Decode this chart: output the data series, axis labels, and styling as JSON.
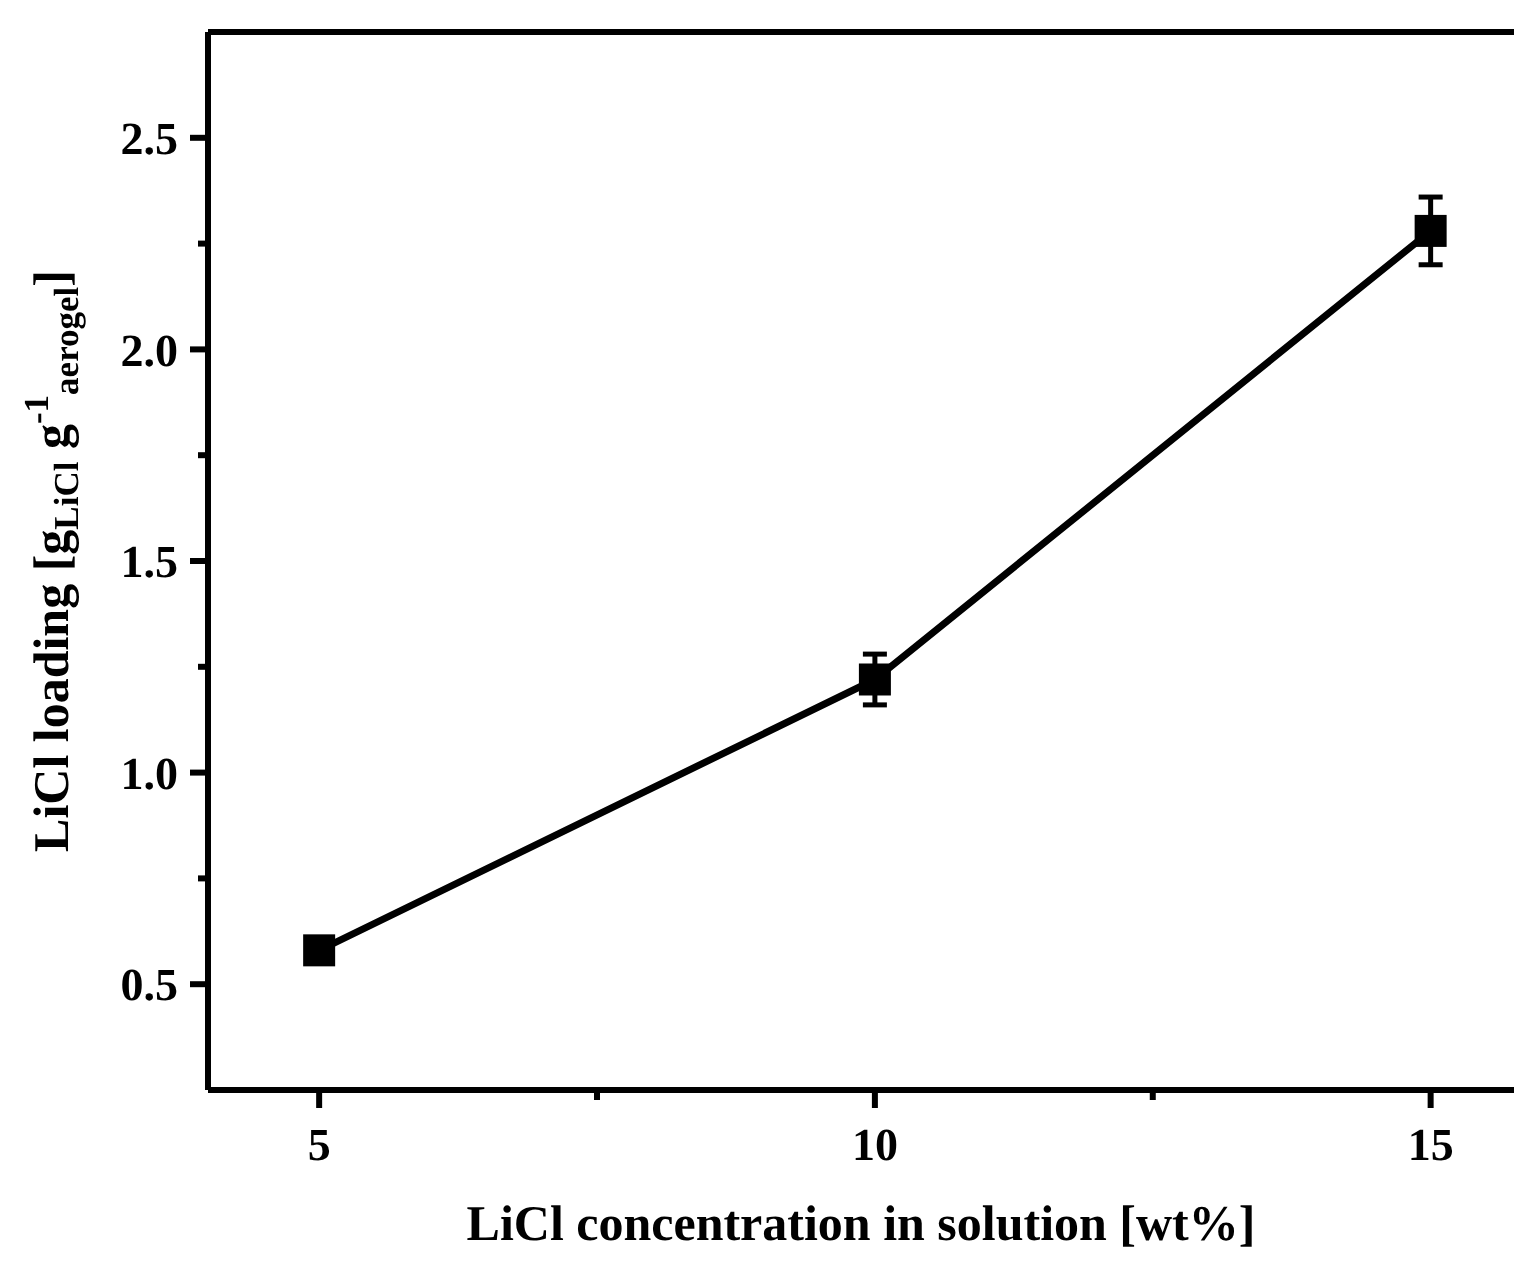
{
  "chart_data": {
    "type": "line",
    "xlabel": "LiCl concentration in solution [wt%]",
    "ylabel": "LiCl loading [g$_{LiCl}$ g$^{-1}$$_{aerogel}$]",
    "x": [
      5,
      10,
      15
    ],
    "series": [
      {
        "color": "#000000",
        "values": [
          0.58,
          1.22,
          2.28
        ],
        "errors": [
          0.02,
          0.06,
          0.08
        ]
      }
    ],
    "xlim": [
      4,
      15.75
    ],
    "xticks": [
      5,
      {
        "value": 7.5,
        "label": null
      },
      10,
      {
        "value": 12.5,
        "label": null
      },
      15
    ],
    "ylim": [
      0.25,
      2.75
    ],
    "yticks": [
      0.5,
      {
        "value": 0.75,
        "label": null
      },
      {
        "value": 1,
        "label": "1.0"
      },
      {
        "value": 1.25,
        "label": null
      },
      1.5,
      {
        "value": 1.75,
        "label": null
      },
      {
        "value": 2,
        "label": "2.0"
      },
      {
        "value": 2.25,
        "label": null
      },
      2.5
    ],
    "grid": false,
    "marker": "square",
    "line_style": "solid"
  }
}
